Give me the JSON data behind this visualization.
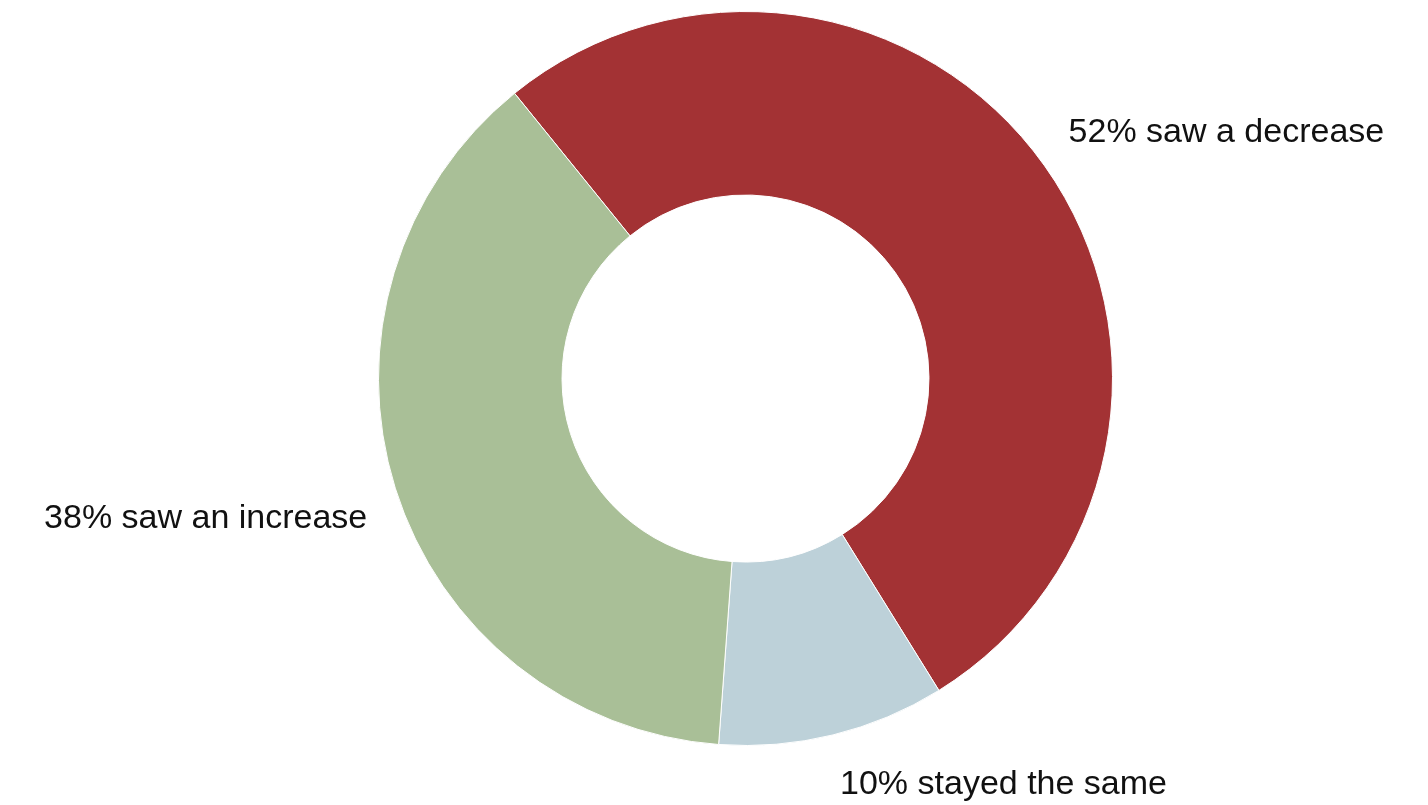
{
  "chart_data": {
    "type": "donut",
    "categories": [
      "52% saw a decrease",
      "10% stayed the same",
      "38% saw an increase"
    ],
    "values": [
      52,
      10,
      38
    ],
    "colors": [
      "#a33234",
      "#bdd1d9",
      "#a9bf97"
    ]
  }
}
